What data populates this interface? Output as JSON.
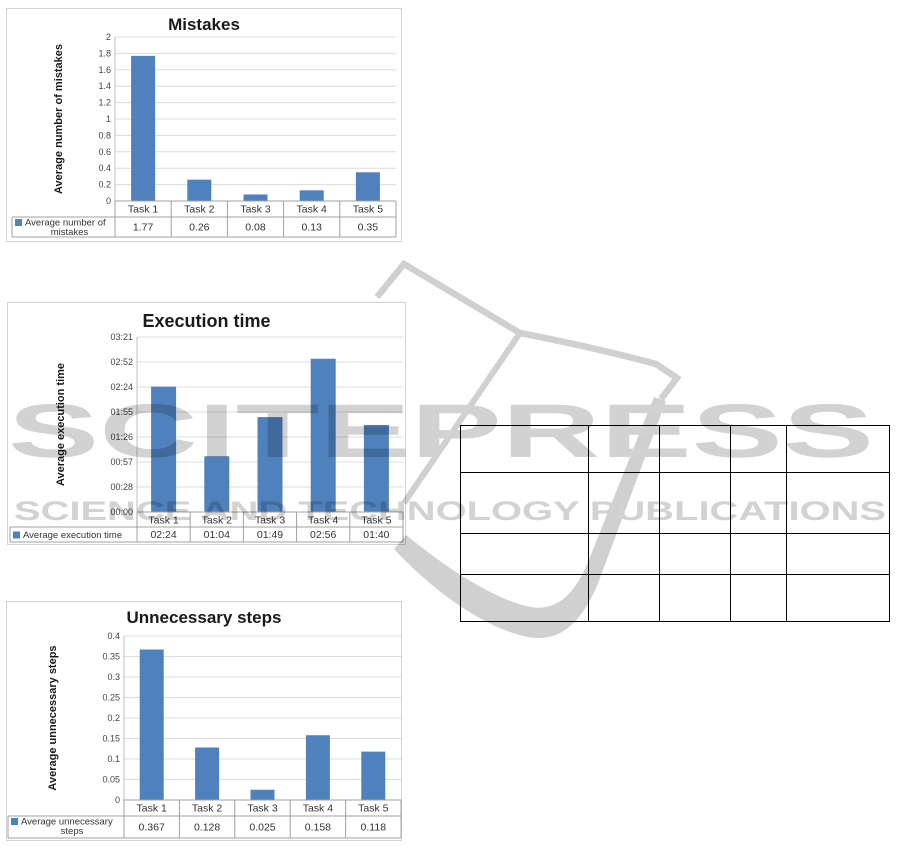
{
  "watermark": {
    "brand": "SCITEPRESS",
    "tagline": "SCIENCE AND TECHNOLOGY PUBLICATIONS",
    "color": "#D2D2D2"
  },
  "chart_data": [
    {
      "type": "bar",
      "title": "Mistakes",
      "ylabel": "Average number of mistakes",
      "xlabel": "",
      "categories": [
        "Task 1",
        "Task 2",
        "Task 3",
        "Task 4",
        "Task 5"
      ],
      "values": [
        1.77,
        0.26,
        0.08,
        0.13,
        0.35
      ],
      "value_labels": [
        "1.77",
        "0.26",
        "0.08",
        "0.13",
        "0.35"
      ],
      "ylim": [
        0,
        2
      ],
      "ytick_labels": [
        "2",
        "1.8",
        "1.6",
        "1.4",
        "1.2",
        "1",
        "0.8",
        "0.6",
        "0.4",
        "0.2",
        "0"
      ],
      "legend_lines": [
        "Average number of",
        "mistakes"
      ],
      "legend_position": "bottom-data-table",
      "grid": true,
      "bar_color": "#4F81BD"
    },
    {
      "type": "bar",
      "title": "Execution time",
      "ylabel": "Average execution time",
      "xlabel": "",
      "categories": [
        "Task 1",
        "Task 2",
        "Task 3",
        "Task 4",
        "Task 5"
      ],
      "values": [
        144,
        64,
        109,
        176,
        100
      ],
      "value_labels": [
        "02:24",
        "01:04",
        "01:49",
        "02:56",
        "01:40"
      ],
      "ylim": [
        0,
        201
      ],
      "ytick_labels": [
        "03:21",
        "02:52",
        "02:24",
        "01:55",
        "01:26",
        "00:57",
        "00:28",
        "00:00"
      ],
      "legend_lines": [
        "Average execution time"
      ],
      "legend_position": "bottom-data-table",
      "grid": true,
      "bar_color": "#4F81BD"
    },
    {
      "type": "bar",
      "title": "Unnecessary steps",
      "ylabel": "Average unnecessary steps",
      "xlabel": "",
      "categories": [
        "Task 1",
        "Task 2",
        "Task 3",
        "Task 4",
        "Task 5"
      ],
      "values": [
        0.367,
        0.128,
        0.025,
        0.158,
        0.118
      ],
      "value_labels": [
        "0.367",
        "0.128",
        "0.025",
        "0.158",
        "0.118"
      ],
      "ylim": [
        0,
        0.4
      ],
      "ytick_labels": [
        "0.4",
        "0.35",
        "0.3",
        "0.25",
        "0.2",
        "0.15",
        "0.1",
        "0.05",
        "0"
      ],
      "legend_lines": [
        "Average unnecessary",
        "steps"
      ],
      "legend_position": "bottom-data-table",
      "grid": true,
      "bar_color": "#4F81BD"
    }
  ],
  "empty_table": {
    "rows": 4,
    "columns": 5,
    "cells": [
      [
        "",
        "",
        "",
        "",
        ""
      ],
      [
        "",
        "",
        "",
        "",
        ""
      ],
      [
        "",
        "",
        "",
        "",
        ""
      ],
      [
        "",
        "",
        "",
        "",
        ""
      ]
    ]
  }
}
